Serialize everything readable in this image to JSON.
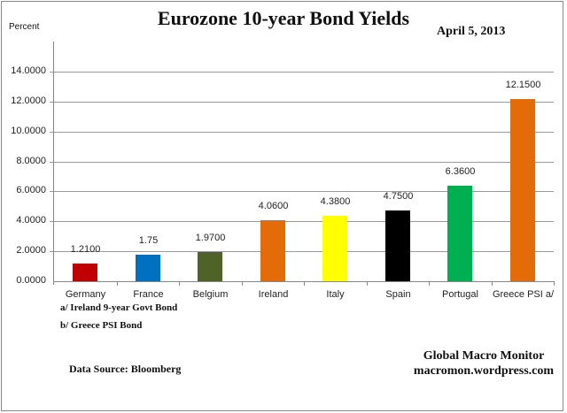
{
  "chart_data": {
    "type": "bar",
    "title": "Eurozone 10-year Bond Yields",
    "subtitle": "April 5, 2013",
    "xlabel": "",
    "ylabel": "Percent",
    "ylim": [
      0,
      14
    ],
    "yticks": [
      "14.0000",
      "12.0000",
      "10.0000",
      "8.0000",
      "6.0000",
      "4.0000",
      "2.0000",
      "0.0000"
    ],
    "ytick_values": [
      14,
      12,
      10,
      8,
      6,
      4,
      2,
      0
    ],
    "grid": true,
    "legend": "none",
    "categories": [
      "Germany",
      "France",
      "Belgium",
      "Ireland",
      "Italy",
      "Spain",
      "Portugal",
      "Greece PSI a/"
    ],
    "values": [
      1.21,
      1.75,
      1.97,
      4.06,
      4.38,
      4.75,
      6.36,
      12.15
    ],
    "value_labels": [
      "1.2100",
      "1.75",
      "1.9700",
      "4.0600",
      "4.3800",
      "4.7500",
      "6.3600",
      "12.1500"
    ],
    "colors": [
      "#c00000",
      "#0070c0",
      "#4f6228",
      "#e36c09",
      "#ffff00",
      "#000000",
      "#00b050",
      "#e36c09"
    ],
    "annotations": [
      "a/ Ireland 9-year Govt Bond",
      "b/ Greece PSI Bond"
    ]
  },
  "header": {
    "title": "Eurozone 10-year Bond Yields",
    "date": "April 5, 2013",
    "y_unit": "Percent"
  },
  "footer": {
    "note_a": "a/ Ireland 9-year Govt Bond",
    "note_b": "b/ Greece PSI Bond",
    "source": "Data Source:  Bloomberg",
    "brand_name": "Global Macro Monitor",
    "brand_url": "macromon.wordpress.com"
  }
}
